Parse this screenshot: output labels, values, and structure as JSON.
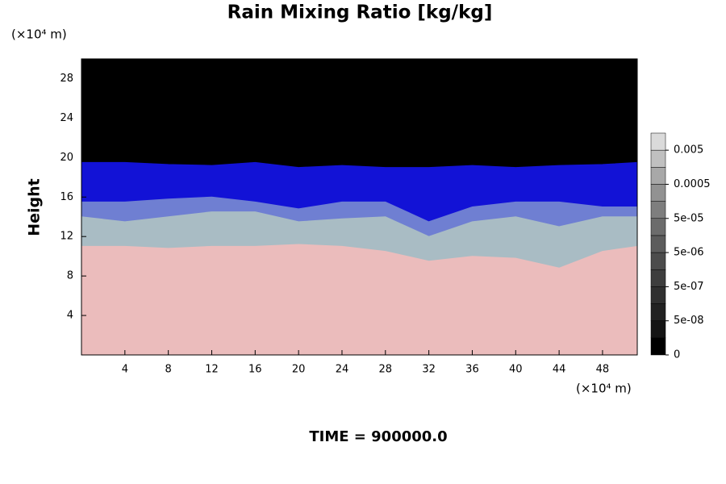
{
  "chart_data": {
    "type": "layered-field",
    "title": "Rain Mixing Ratio [kg/kg]",
    "y_unit": "(×10⁴ m)",
    "x_unit": "(×10⁴ m)",
    "y_label": "Height",
    "footer": "TIME = 900000.0",
    "xlim": [
      0,
      51.2
    ],
    "ylim": [
      0,
      30
    ],
    "xticks": [
      4,
      8,
      12,
      16,
      20,
      24,
      28,
      32,
      36,
      40,
      44,
      48
    ],
    "yticks": [
      4,
      8,
      12,
      16,
      20,
      24,
      28
    ],
    "background": "#000000",
    "field_x": [
      0,
      4,
      8,
      12,
      16,
      20,
      24,
      28,
      32,
      36,
      40,
      44,
      48,
      51.2
    ],
    "layers": [
      {
        "color": "#ebbcbc",
        "top": [
          11,
          11,
          10.8,
          11,
          11,
          11.2,
          11,
          10.5,
          9.5,
          10,
          9.8,
          8.8,
          10.5,
          11
        ]
      },
      {
        "color": "#a9bcc4",
        "top": [
          14,
          13.5,
          14,
          14.5,
          14.5,
          13.5,
          13.8,
          14,
          12,
          13.5,
          14,
          13,
          14,
          14
        ]
      },
      {
        "color": "#6f7fd2",
        "top": [
          15.5,
          15.5,
          15.8,
          16,
          15.5,
          14.8,
          15.5,
          15.5,
          13.5,
          15,
          15.5,
          15.5,
          15,
          15
        ]
      },
      {
        "color": "#1212d6",
        "top": [
          19.5,
          19.5,
          19.3,
          19.2,
          19.5,
          19,
          19.2,
          19,
          19,
          19.2,
          19,
          19.2,
          19.3,
          19.5
        ]
      }
    ],
    "colorbar": {
      "colors": [
        "#000000",
        "#141414",
        "#222222",
        "#303030",
        "#3e3e3e",
        "#4c4c4c",
        "#5c5c5c",
        "#6c6c6c",
        "#7e7e7e",
        "#929292",
        "#a8a8a8",
        "#c0c0c0",
        "#dadada"
      ],
      "ticks": [
        0,
        {
          "value": 5e-08,
          "label": "5e-08"
        },
        {
          "value": 5e-07,
          "label": "5e-07"
        },
        {
          "value": 5e-06,
          "label": "5e-06"
        },
        {
          "value": 5e-05,
          "label": "5e-05"
        },
        0.0005,
        0.005
      ]
    }
  }
}
